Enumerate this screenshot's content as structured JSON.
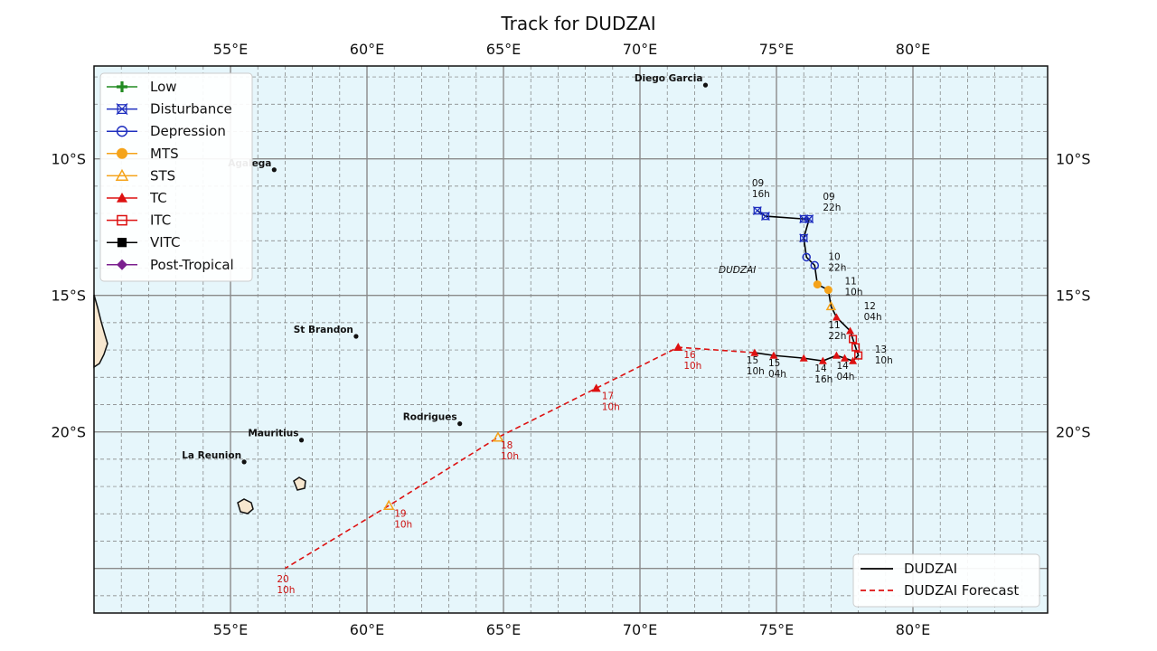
{
  "title": "Track for DUDZAI",
  "axes": {
    "lon_ticks": [
      "55°E",
      "60°E",
      "65°E",
      "70°E",
      "75°E",
      "80°E"
    ],
    "lat_ticks": [
      "10°S",
      "15°S",
      "20°S"
    ]
  },
  "legend": {
    "categories": [
      {
        "key": "low",
        "label": "Low",
        "color": "#228b22",
        "marker": "plus"
      },
      {
        "key": "disturbance",
        "label": "Disturbance",
        "color": "#1f2fbf",
        "marker": "x-square"
      },
      {
        "key": "depression",
        "label": "Depression",
        "color": "#1f2fbf",
        "marker": "circle-open"
      },
      {
        "key": "mts",
        "label": "MTS",
        "color": "#f5a31a",
        "marker": "circle-filled"
      },
      {
        "key": "sts",
        "label": "STS",
        "color": "#f5a31a",
        "marker": "triangle-open"
      },
      {
        "key": "tc",
        "label": "TC",
        "color": "#dd1111",
        "marker": "triangle-filled"
      },
      {
        "key": "itc",
        "label": "ITC",
        "color": "#dd1111",
        "marker": "square-open"
      },
      {
        "key": "vitc",
        "label": "VITC",
        "color": "#000000",
        "marker": "square-filled"
      },
      {
        "key": "post_tropical",
        "label": "Post-Tropical",
        "color": "#7b1f8f",
        "marker": "diamond"
      }
    ],
    "lines": [
      {
        "label": "DUDZAI",
        "color": "#000000",
        "style": "solid"
      },
      {
        "label": "DUDZAI Forecast",
        "color": "#dd1111",
        "style": "dashed"
      }
    ]
  },
  "places": [
    {
      "name": "Diego Garcia",
      "lon": 72.4,
      "lat": -7.3
    },
    {
      "name": "Agalega",
      "lon": 56.6,
      "lat": -10.4
    },
    {
      "name": "St Brandon",
      "lon": 59.6,
      "lat": -16.5
    },
    {
      "name": "Rodrigues",
      "lon": 63.4,
      "lat": -19.7
    },
    {
      "name": "Mauritius",
      "lon": 57.6,
      "lat": -20.3
    },
    {
      "name": "La Reunion",
      "lon": 55.5,
      "lat": -21.1
    }
  ],
  "storm_name_label": "DUDZAI",
  "observed_track": [
    {
      "lon": 74.3,
      "lat": -11.9,
      "cat": "disturbance"
    },
    {
      "lon": 74.6,
      "lat": -12.1,
      "cat": "disturbance"
    },
    {
      "lon": 76.0,
      "lat": -12.2,
      "cat": "disturbance"
    },
    {
      "lon": 76.2,
      "lat": -12.2,
      "cat": "disturbance"
    },
    {
      "lon": 76.0,
      "lat": -12.9,
      "cat": "disturbance"
    },
    {
      "lon": 76.1,
      "lat": -13.6,
      "cat": "depression"
    },
    {
      "lon": 76.4,
      "lat": -13.9,
      "cat": "depression"
    },
    {
      "lon": 76.5,
      "lat": -14.6,
      "cat": "mts"
    },
    {
      "lon": 76.9,
      "lat": -14.8,
      "cat": "mts"
    },
    {
      "lon": 77.0,
      "lat": -15.4,
      "cat": "sts"
    },
    {
      "lon": 77.2,
      "lat": -15.8,
      "cat": "tc"
    },
    {
      "lon": 77.7,
      "lat": -16.3,
      "cat": "tc"
    },
    {
      "lon": 77.8,
      "lat": -16.6,
      "cat": "itc"
    },
    {
      "lon": 77.9,
      "lat": -16.9,
      "cat": "itc"
    },
    {
      "lon": 78.0,
      "lat": -17.2,
      "cat": "itc"
    },
    {
      "lon": 77.8,
      "lat": -17.4,
      "cat": "tc"
    },
    {
      "lon": 77.5,
      "lat": -17.3,
      "cat": "tc"
    },
    {
      "lon": 77.2,
      "lat": -17.2,
      "cat": "tc"
    },
    {
      "lon": 76.7,
      "lat": -17.4,
      "cat": "tc"
    },
    {
      "lon": 76.0,
      "lat": -17.3,
      "cat": "tc"
    },
    {
      "lon": 74.9,
      "lat": -17.2,
      "cat": "tc"
    },
    {
      "lon": 74.2,
      "lat": -17.1,
      "cat": "tc"
    }
  ],
  "forecast_track": [
    {
      "lon": 74.2,
      "lat": -17.1,
      "cat": null
    },
    {
      "lon": 71.4,
      "lat": -16.9,
      "cat": "tc"
    },
    {
      "lon": 68.4,
      "lat": -18.4,
      "cat": "tc"
    },
    {
      "lon": 64.8,
      "lat": -20.2,
      "cat": "sts"
    },
    {
      "lon": 60.8,
      "lat": -22.7,
      "cat": "sts"
    },
    {
      "lon": 57.0,
      "lat": -25.0,
      "cat": null
    }
  ],
  "time_labels": [
    {
      "day": "09",
      "hour": "16h",
      "lon": 74.1,
      "lat": -11.0,
      "forecast": false
    },
    {
      "day": "09",
      "hour": "22h",
      "lon": 76.7,
      "lat": -11.5,
      "forecast": false
    },
    {
      "day": "10",
      "hour": "22h",
      "lon": 76.9,
      "lat": -13.7,
      "forecast": false
    },
    {
      "day": "11",
      "hour": "10h",
      "lon": 77.5,
      "lat": -14.6,
      "forecast": false
    },
    {
      "day": "12",
      "hour": "04h",
      "lon": 78.2,
      "lat": -15.5,
      "forecast": false
    },
    {
      "day": "11",
      "hour": "22h",
      "lon": 76.9,
      "lat": -16.2,
      "forecast": false
    },
    {
      "day": "13",
      "hour": "10h",
      "lon": 78.6,
      "lat": -17.1,
      "forecast": false
    },
    {
      "day": "14",
      "hour": "04h",
      "lon": 77.2,
      "lat": -17.7,
      "forecast": false
    },
    {
      "day": "14",
      "hour": "16h",
      "lon": 76.4,
      "lat": -17.8,
      "forecast": false
    },
    {
      "day": "15",
      "hour": "04h",
      "lon": 74.7,
      "lat": -17.6,
      "forecast": false
    },
    {
      "day": "15",
      "hour": "10h",
      "lon": 73.9,
      "lat": -17.5,
      "forecast": false
    },
    {
      "day": "16",
      "hour": "10h",
      "lon": 71.6,
      "lat": -17.3,
      "forecast": true
    },
    {
      "day": "17",
      "hour": "10h",
      "lon": 68.6,
      "lat": -18.8,
      "forecast": true
    },
    {
      "day": "18",
      "hour": "10h",
      "lon": 64.9,
      "lat": -20.6,
      "forecast": true
    },
    {
      "day": "19",
      "hour": "10h",
      "lon": 61.0,
      "lat": -23.1,
      "forecast": true
    },
    {
      "day": "20",
      "hour": "10h",
      "lon": 56.7,
      "lat": -25.5,
      "forecast": true
    }
  ]
}
